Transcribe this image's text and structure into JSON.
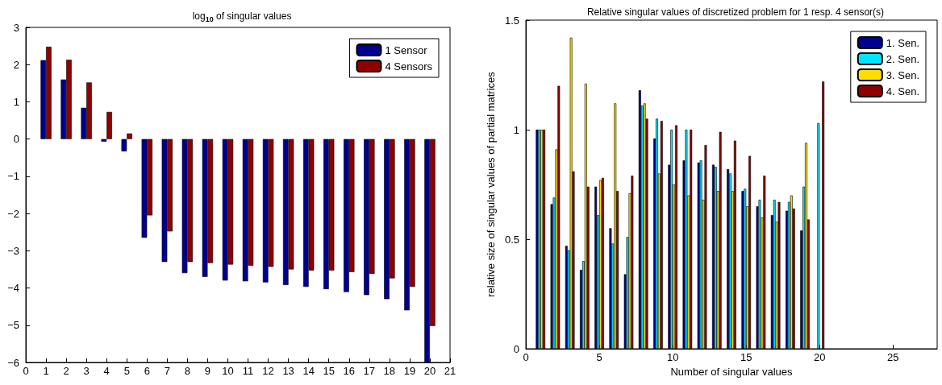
{
  "chart_data": [
    {
      "type": "bar",
      "title": "log$_{10}$ of singular values",
      "x": [
        1,
        2,
        3,
        4,
        5,
        6,
        7,
        8,
        9,
        10,
        11,
        12,
        13,
        14,
        15,
        16,
        17,
        18,
        19,
        20
      ],
      "series": [
        {
          "name": "1 Sensor",
          "color": "#00008f",
          "values": [
            2.12,
            1.6,
            0.84,
            -0.07,
            -0.33,
            -2.65,
            -3.3,
            -3.6,
            -3.7,
            -3.8,
            -3.82,
            -3.85,
            -3.92,
            -3.97,
            -4.03,
            -4.11,
            -4.19,
            -4.3,
            -4.6,
            -6.0
          ]
        },
        {
          "name": "4 Sensors",
          "color": "#8f0000",
          "values": [
            2.48,
            2.13,
            1.52,
            0.73,
            0.15,
            -2.05,
            -2.48,
            -3.3,
            -3.33,
            -3.37,
            -3.4,
            -3.43,
            -3.5,
            -3.53,
            -3.53,
            -3.57,
            -3.62,
            -3.74,
            -3.97,
            -5.02
          ]
        }
      ],
      "xlim": [
        0,
        21
      ],
      "xticks": [
        0,
        1,
        2,
        3,
        4,
        5,
        6,
        7,
        8,
        9,
        10,
        11,
        12,
        13,
        14,
        15,
        16,
        17,
        18,
        19,
        20,
        21
      ],
      "ylim": [
        -6,
        3
      ],
      "yticks": [
        -6,
        -5,
        -4,
        -3,
        -2,
        -1,
        0,
        1,
        2,
        3
      ],
      "legend": "top right"
    },
    {
      "type": "bar",
      "title": "Relative singular values of discretized problem for 1 resp. 4 sensor(s)",
      "xlabel": "Number of singular values",
      "ylabel": "relative size of singular values of partial matrices",
      "x": [
        1,
        2,
        3,
        4,
        5,
        6,
        7,
        8,
        9,
        10,
        11,
        12,
        13,
        14,
        15,
        16,
        17,
        18,
        19,
        20
      ],
      "series": [
        {
          "name": "1. Sen.",
          "color": "#00008f",
          "values": [
            1.0,
            0.66,
            0.47,
            0.36,
            0.74,
            0.55,
            0.34,
            1.18,
            0.96,
            0.84,
            0.86,
            0.85,
            0.84,
            0.82,
            0.72,
            0.65,
            0.61,
            0.63,
            0.54,
            null
          ]
        },
        {
          "name": "2. Sen.",
          "color": "#00e5ff",
          "values": [
            1.0,
            0.69,
            0.45,
            0.4,
            0.61,
            0.48,
            0.51,
            1.11,
            1.05,
            1.0,
            1.0,
            0.86,
            0.83,
            0.8,
            0.73,
            0.68,
            0.68,
            0.67,
            0.74,
            1.03
          ]
        },
        {
          "name": "3. Sen.",
          "color": "#ffdf00",
          "values": [
            1.0,
            0.91,
            1.42,
            1.21,
            0.77,
            1.12,
            0.71,
            1.12,
            0.8,
            0.75,
            0.7,
            0.68,
            0.72,
            0.72,
            0.65,
            0.6,
            0.58,
            0.7,
            0.94,
            null
          ]
        },
        {
          "name": "4. Sen.",
          "color": "#8f0000",
          "values": [
            1.0,
            1.2,
            0.81,
            0.74,
            0.78,
            0.72,
            0.79,
            1.05,
            1.04,
            1.02,
            1.0,
            0.93,
            0.99,
            0.95,
            0.88,
            0.79,
            0.67,
            0.64,
            0.59,
            1.22
          ]
        }
      ],
      "xlim": [
        0,
        28
      ],
      "xticks": [
        0,
        5,
        10,
        15,
        20,
        25
      ],
      "ylim": [
        0,
        1.5
      ],
      "yticks": [
        0,
        0.5,
        1,
        1.5
      ],
      "legend": "top right"
    }
  ]
}
